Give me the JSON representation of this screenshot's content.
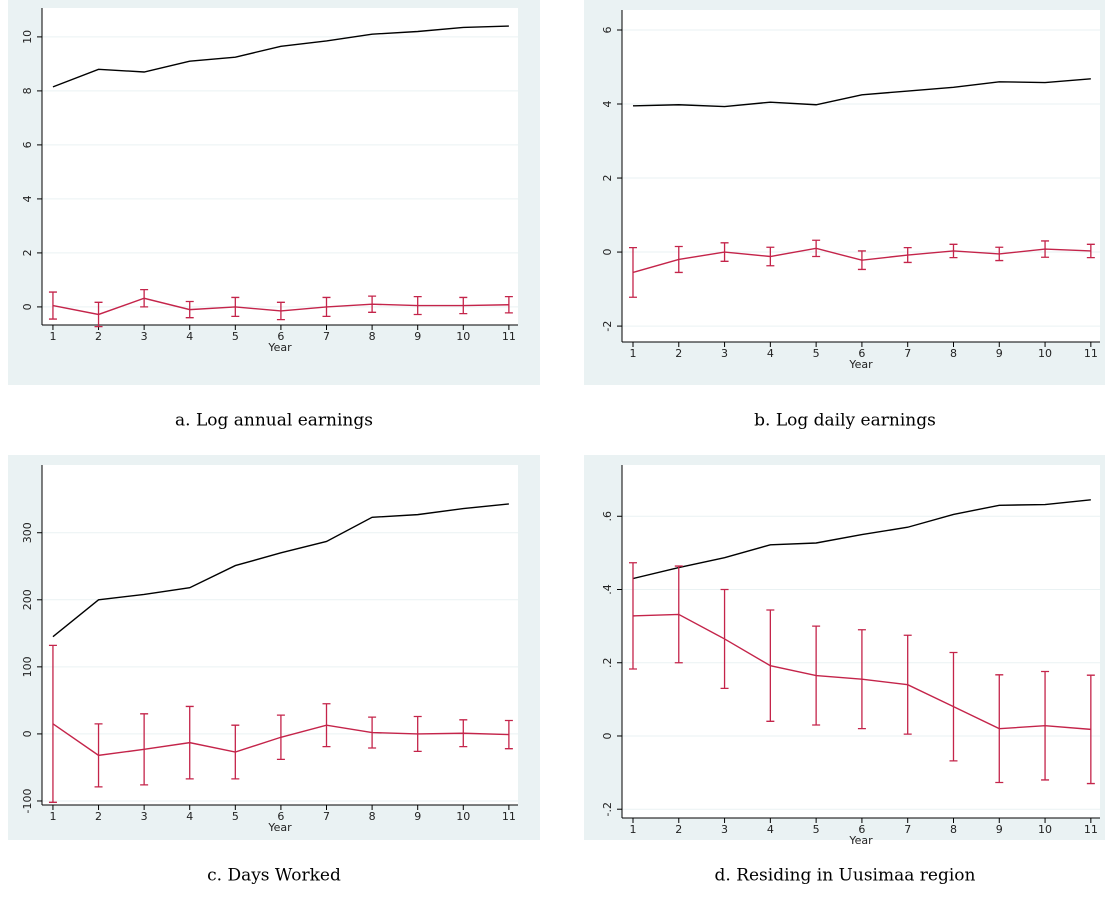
{
  "chart_data": [
    {
      "type": "line",
      "caption": "a. Log annual earnings",
      "x_label": "Year",
      "x": [
        1,
        2,
        3,
        4,
        5,
        6,
        7,
        8,
        9,
        10,
        11
      ],
      "xlim": [
        0.76,
        11.2
      ],
      "xticks": [
        1,
        2,
        3,
        4,
        5,
        6,
        7,
        8,
        9,
        10,
        11
      ],
      "ylim": [
        -0.67,
        11.07
      ],
      "yticks": [
        0,
        2,
        4,
        6,
        8,
        10
      ],
      "grid": true,
      "series": [
        {
          "color": "#000000",
          "values": [
            8.15,
            8.8,
            8.7,
            9.1,
            9.25,
            9.65,
            9.85,
            10.1,
            10.2,
            10.35,
            10.4
          ]
        },
        {
          "color": "#c4244a",
          "values": [
            0.05,
            -0.28,
            0.32,
            -0.1,
            0,
            -0.15,
            0,
            0.1,
            0.05,
            0.05,
            0.08
          ],
          "errors": [
            0.5,
            0.45,
            0.32,
            0.3,
            0.35,
            0.32,
            0.35,
            0.3,
            0.33,
            0.3,
            0.3
          ]
        }
      ]
    },
    {
      "type": "line",
      "caption": "b. Log daily earnings",
      "x_label": "Year",
      "x": [
        1,
        2,
        3,
        4,
        5,
        6,
        7,
        8,
        9,
        10,
        11
      ],
      "xlim": [
        0.76,
        11.2
      ],
      "xticks": [
        1,
        2,
        3,
        4,
        5,
        6,
        7,
        8,
        9,
        10,
        11
      ],
      "ylim": [
        -2.43,
        6.54
      ],
      "yticks": [
        -2,
        0,
        2,
        4,
        6
      ],
      "grid": true,
      "series": [
        {
          "color": "#000000",
          "values": [
            3.95,
            3.98,
            3.93,
            4.05,
            3.98,
            4.25,
            4.35,
            4.45,
            4.6,
            4.58,
            4.68
          ]
        },
        {
          "color": "#c4244a",
          "values": [
            -0.55,
            -0.2,
            0,
            -0.12,
            0.1,
            -0.22,
            -0.08,
            0.03,
            -0.05,
            0.08,
            0.03
          ],
          "errors": [
            0.67,
            0.35,
            0.25,
            0.25,
            0.22,
            0.25,
            0.2,
            0.18,
            0.18,
            0.22,
            0.18
          ]
        }
      ]
    },
    {
      "type": "line",
      "caption": "c. Days Worked",
      "x_label": "Year",
      "x": [
        1,
        2,
        3,
        4,
        5,
        6,
        7,
        8,
        9,
        10,
        11
      ],
      "xlim": [
        0.76,
        11.2
      ],
      "xticks": [
        1,
        2,
        3,
        4,
        5,
        6,
        7,
        8,
        9,
        10,
        11
      ],
      "ylim": [
        -106,
        401
      ],
      "yticks": [
        -100,
        0,
        100,
        200,
        300
      ],
      "grid": true,
      "series": [
        {
          "color": "#000000",
          "values": [
            145,
            200,
            208,
            218,
            251,
            270,
            287,
            323,
            327,
            336,
            343
          ]
        },
        {
          "color": "#c4244a",
          "values": [
            15,
            -32,
            -23,
            -13,
            -27,
            -5,
            13,
            2,
            0,
            1,
            -1
          ],
          "errors": [
            117,
            47,
            53,
            54,
            40,
            33,
            32,
            23,
            26,
            20,
            21
          ]
        }
      ]
    },
    {
      "type": "line",
      "caption": "d. Residing in Uusimaa region",
      "x_label": "Year",
      "x": [
        1,
        2,
        3,
        4,
        5,
        6,
        7,
        8,
        9,
        10,
        11
      ],
      "xlim": [
        0.76,
        11.2
      ],
      "xticks": [
        1,
        2,
        3,
        4,
        5,
        6,
        7,
        8,
        9,
        10,
        11
      ],
      "ylim": [
        -0.224,
        0.74
      ],
      "yticks": [
        {
          "value": -0.2,
          "label": "-.2"
        },
        0,
        {
          "value": 0.2,
          "label": ".2"
        },
        {
          "value": 0.4,
          "label": ".4"
        },
        {
          "value": 0.6,
          "label": ".6"
        }
      ],
      "grid": true,
      "series": [
        {
          "color": "#000000",
          "values": [
            0.43,
            0.46,
            0.487,
            0.522,
            0.527,
            0.55,
            0.57,
            0.605,
            0.63,
            0.632,
            0.645
          ]
        },
        {
          "color": "#c4244a",
          "values": [
            0.328,
            0.332,
            0.265,
            0.192,
            0.165,
            0.155,
            0.14,
            0.08,
            0.02,
            0.028,
            0.018
          ],
          "errors": [
            0.145,
            0.132,
            0.135,
            0.152,
            0.135,
            0.135,
            0.135,
            0.148,
            0.147,
            0.148,
            0.148
          ]
        }
      ]
    }
  ]
}
